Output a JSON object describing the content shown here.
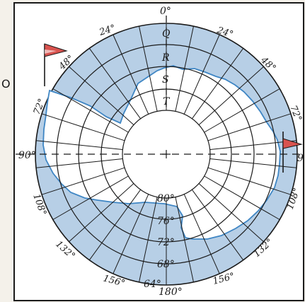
{
  "map": {
    "grid_rows": [
      "Q",
      "R",
      "S",
      "T"
    ],
    "longitude_labels": {
      "top": "0°",
      "top_left": "24°",
      "top_right": "24°",
      "upper_left": "48°",
      "upper_right": "48°",
      "left_upper": "72°",
      "right_upper": "72°",
      "left": "90°",
      "right": "9",
      "left_lower": "108°",
      "right_lower": "108°",
      "lower_left": "132°",
      "lower_right": "132°",
      "bottom_left": "156°",
      "bottom_right": "156°",
      "bottom": "180°"
    },
    "latitude_labels": [
      "80°",
      "76°",
      "72°",
      "68°",
      "64°"
    ],
    "side_mark": "O",
    "colors": {
      "ocean": "#b7cfe6",
      "land": "#ffffff",
      "lines": "#1a1a1a",
      "coast": "#3f86c4",
      "flag": "#d9534f",
      "paper": "#f4f1ea"
    },
    "flags": [
      "left-flag",
      "right-flag"
    ]
  }
}
